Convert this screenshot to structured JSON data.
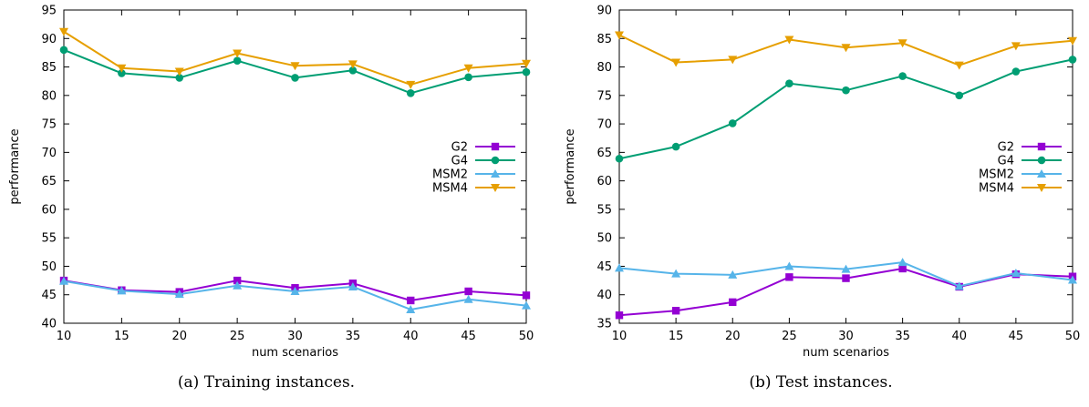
{
  "chart_data": [
    {
      "type": "line",
      "xlabel": "num scenarios",
      "ylabel": "performance",
      "ylim": [
        40,
        95
      ],
      "xlim": [
        10,
        50
      ],
      "yticks": [
        40,
        45,
        50,
        55,
        60,
        65,
        70,
        75,
        80,
        85,
        90,
        95
      ],
      "xticks": [
        10,
        15,
        20,
        25,
        30,
        35,
        40,
        45,
        50
      ],
      "x": [
        10,
        15,
        20,
        25,
        30,
        35,
        40,
        45,
        50
      ],
      "legend_position": "right-middle",
      "grid": false,
      "series": [
        {
          "name": "G2",
          "color": "#9400D3",
          "marker": "square",
          "values": [
            47.5,
            45.8,
            45.5,
            47.5,
            46.2,
            47.0,
            44.0,
            45.6,
            44.9
          ]
        },
        {
          "name": "G4",
          "color": "#009E73",
          "marker": "circle",
          "values": [
            88.0,
            83.9,
            83.1,
            86.1,
            83.1,
            84.4,
            80.4,
            83.2,
            84.1
          ]
        },
        {
          "name": "MSM2",
          "color": "#56B4E9",
          "marker": "triangle-up",
          "values": [
            47.4,
            45.7,
            45.1,
            46.6,
            45.6,
            46.4,
            42.4,
            44.2,
            43.1
          ]
        },
        {
          "name": "MSM4",
          "color": "#E69F00",
          "marker": "triangle-down",
          "values": [
            91.2,
            84.8,
            84.2,
            87.4,
            85.2,
            85.5,
            81.9,
            84.8,
            85.6
          ]
        }
      ]
    },
    {
      "type": "line",
      "xlabel": "num scenarios",
      "ylabel": "performance",
      "ylim": [
        35,
        90
      ],
      "xlim": [
        10,
        50
      ],
      "yticks": [
        35,
        40,
        45,
        50,
        55,
        60,
        65,
        70,
        75,
        80,
        85,
        90
      ],
      "xticks": [
        10,
        15,
        20,
        25,
        30,
        35,
        40,
        45,
        50
      ],
      "x": [
        10,
        15,
        20,
        25,
        30,
        35,
        40,
        45,
        50
      ],
      "legend_position": "right-middle",
      "grid": false,
      "series": [
        {
          "name": "G2",
          "color": "#9400D3",
          "marker": "square",
          "values": [
            36.4,
            37.2,
            38.7,
            43.1,
            42.9,
            44.6,
            41.4,
            43.6,
            43.2
          ]
        },
        {
          "name": "G4",
          "color": "#009E73",
          "marker": "circle",
          "values": [
            63.9,
            66.0,
            70.1,
            77.1,
            75.9,
            78.4,
            75.0,
            79.2,
            81.3
          ]
        },
        {
          "name": "MSM2",
          "color": "#56B4E9",
          "marker": "triangle-up",
          "values": [
            44.7,
            43.7,
            43.5,
            45.0,
            44.5,
            45.7,
            41.5,
            43.8,
            42.6
          ]
        },
        {
          "name": "MSM4",
          "color": "#E69F00",
          "marker": "triangle-down",
          "values": [
            85.6,
            80.8,
            81.3,
            84.8,
            83.4,
            84.2,
            80.3,
            83.7,
            84.6
          ]
        }
      ]
    }
  ],
  "captions": {
    "a": "(a)  Training instances.",
    "b": "(b)  Test instances."
  }
}
